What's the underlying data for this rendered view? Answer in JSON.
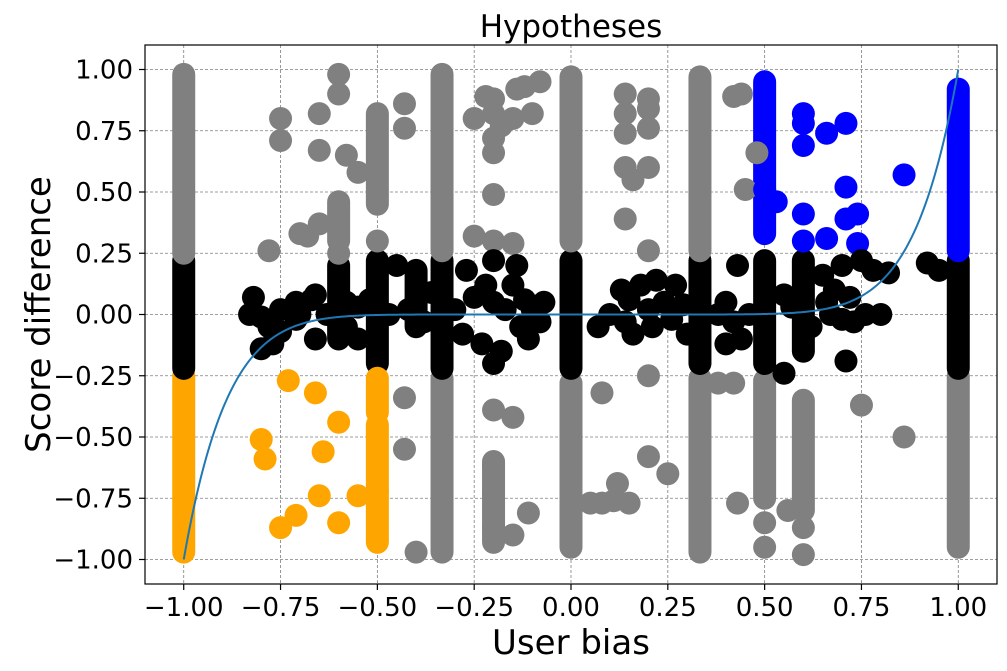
{
  "chart_data": {
    "type": "scatter",
    "title": "Hypotheses",
    "xlabel": "User bias",
    "ylabel": "Score difference",
    "xlim": [
      -1.1,
      1.1
    ],
    "ylim": [
      -1.1,
      1.1
    ],
    "xticks": [
      -1.0,
      -0.75,
      -0.5,
      -0.25,
      0.0,
      0.25,
      0.5,
      0.75,
      1.0
    ],
    "xtick_labels": [
      "−1.00",
      "−0.75",
      "−0.50",
      "−0.25",
      "0.00",
      "0.25",
      "0.50",
      "0.75",
      "1.00"
    ],
    "yticks": [
      1.0,
      0.75,
      0.5,
      0.25,
      0.0,
      -0.25,
      -0.5,
      -0.75,
      -1.0
    ],
    "ytick_labels": [
      "1.00",
      "0.75",
      "0.50",
      "0.25",
      "0.00",
      "−0.25",
      "−0.50",
      "−0.75",
      "−1.00"
    ],
    "grid": true,
    "colors": {
      "gray": "#808080",
      "black": "#000000",
      "blue": "#0000ff",
      "orange": "#ffa500",
      "curve": "#1f77b4"
    },
    "vertical_streaks": [
      {
        "x": -1.0,
        "y_from": -0.97,
        "y_to": -0.25,
        "color": "orange"
      },
      {
        "x": -1.0,
        "y_from": -0.22,
        "y_to": 0.22,
        "color": "black"
      },
      {
        "x": -1.0,
        "y_from": 0.25,
        "y_to": 0.98,
        "color": "gray"
      },
      {
        "x": -0.333,
        "y_from": -0.97,
        "y_to": -0.26,
        "color": "gray"
      },
      {
        "x": -0.333,
        "y_from": -0.22,
        "y_to": 0.22,
        "color": "black"
      },
      {
        "x": -0.333,
        "y_from": 0.26,
        "y_to": 0.98,
        "color": "gray"
      },
      {
        "x": 0.0,
        "y_from": -0.95,
        "y_to": -0.28,
        "color": "gray"
      },
      {
        "x": 0.0,
        "y_from": -0.22,
        "y_to": 0.22,
        "color": "black"
      },
      {
        "x": 0.0,
        "y_from": 0.3,
        "y_to": 0.97,
        "color": "gray"
      },
      {
        "x": 0.333,
        "y_from": -0.97,
        "y_to": -0.26,
        "color": "gray"
      },
      {
        "x": 0.333,
        "y_from": -0.2,
        "y_to": 0.22,
        "color": "black"
      },
      {
        "x": 0.333,
        "y_from": 0.26,
        "y_to": 0.97,
        "color": "gray"
      },
      {
        "x": 0.5,
        "y_from": -0.75,
        "y_to": -0.27,
        "color": "gray"
      },
      {
        "x": 0.5,
        "y_from": -0.2,
        "y_to": 0.22,
        "color": "black"
      },
      {
        "x": 0.5,
        "y_from": 0.33,
        "y_to": 0.95,
        "color": "blue"
      },
      {
        "x": 1.0,
        "y_from": -0.95,
        "y_to": -0.25,
        "color": "gray"
      },
      {
        "x": 1.0,
        "y_from": -0.22,
        "y_to": 0.22,
        "color": "black"
      },
      {
        "x": 1.0,
        "y_from": 0.26,
        "y_to": 0.92,
        "color": "blue"
      },
      {
        "x": -0.5,
        "y_from": 0.45,
        "y_to": 0.82,
        "color": "gray"
      },
      {
        "x": -0.5,
        "y_from": -0.2,
        "y_to": 0.22,
        "color": "black"
      },
      {
        "x": -0.5,
        "y_from": -0.4,
        "y_to": -0.26,
        "color": "orange"
      },
      {
        "x": -0.5,
        "y_from": -0.93,
        "y_to": -0.45,
        "color": "orange"
      },
      {
        "x": -0.6,
        "y_from": 0.3,
        "y_to": 0.46,
        "color": "gray"
      },
      {
        "x": -0.2,
        "y_from": -0.93,
        "y_to": -0.6,
        "color": "gray"
      },
      {
        "x": 0.6,
        "y_from": -0.8,
        "y_to": -0.35,
        "color": "gray"
      },
      {
        "x": 0.6,
        "y_from": -0.15,
        "y_to": 0.22,
        "color": "black"
      },
      {
        "x": -0.6,
        "y_from": -0.1,
        "y_to": 0.2,
        "color": "black"
      },
      {
        "x": -0.4,
        "y_from": -0.05,
        "y_to": 0.18,
        "color": "black"
      }
    ],
    "points": [
      {
        "x": -0.6,
        "y": 0.98,
        "color": "gray"
      },
      {
        "x": -0.6,
        "y": 0.9,
        "color": "gray"
      },
      {
        "x": -0.65,
        "y": 0.82,
        "color": "gray"
      },
      {
        "x": -0.65,
        "y": 0.67,
        "color": "gray"
      },
      {
        "x": -0.75,
        "y": 0.8,
        "color": "gray"
      },
      {
        "x": -0.75,
        "y": 0.71,
        "color": "gray"
      },
      {
        "x": -0.58,
        "y": 0.65,
        "color": "gray"
      },
      {
        "x": -0.55,
        "y": 0.58,
        "color": "gray"
      },
      {
        "x": -0.65,
        "y": 0.37,
        "color": "gray"
      },
      {
        "x": -0.7,
        "y": 0.33,
        "color": "gray"
      },
      {
        "x": -0.68,
        "y": 0.32,
        "color": "gray"
      },
      {
        "x": -0.78,
        "y": 0.26,
        "color": "gray"
      },
      {
        "x": -0.6,
        "y": 0.25,
        "color": "gray"
      },
      {
        "x": -0.43,
        "y": 0.86,
        "color": "gray"
      },
      {
        "x": -0.43,
        "y": 0.76,
        "color": "gray"
      },
      {
        "x": -0.5,
        "y": 0.3,
        "color": "gray"
      },
      {
        "x": -0.25,
        "y": 0.8,
        "color": "gray"
      },
      {
        "x": -0.25,
        "y": 0.32,
        "color": "gray"
      },
      {
        "x": -0.2,
        "y": 0.88,
        "color": "gray"
      },
      {
        "x": -0.2,
        "y": 0.82,
        "color": "gray"
      },
      {
        "x": -0.2,
        "y": 0.72,
        "color": "gray"
      },
      {
        "x": -0.2,
        "y": 0.66,
        "color": "gray"
      },
      {
        "x": -0.2,
        "y": 0.49,
        "color": "gray"
      },
      {
        "x": -0.2,
        "y": 0.3,
        "color": "gray"
      },
      {
        "x": -0.18,
        "y": 0.77,
        "color": "gray"
      },
      {
        "x": -0.15,
        "y": 0.8,
        "color": "gray"
      },
      {
        "x": -0.14,
        "y": 0.92,
        "color": "gray"
      },
      {
        "x": -0.12,
        "y": 0.93,
        "color": "gray"
      },
      {
        "x": -0.1,
        "y": 0.82,
        "color": "gray"
      },
      {
        "x": -0.08,
        "y": 0.95,
        "color": "gray"
      },
      {
        "x": -0.15,
        "y": 0.29,
        "color": "gray"
      },
      {
        "x": -0.22,
        "y": 0.89,
        "color": "gray"
      },
      {
        "x": 0.14,
        "y": 0.9,
        "color": "gray"
      },
      {
        "x": 0.14,
        "y": 0.82,
        "color": "gray"
      },
      {
        "x": 0.14,
        "y": 0.74,
        "color": "gray"
      },
      {
        "x": 0.14,
        "y": 0.6,
        "color": "gray"
      },
      {
        "x": 0.14,
        "y": 0.39,
        "color": "gray"
      },
      {
        "x": 0.2,
        "y": 0.88,
        "color": "gray"
      },
      {
        "x": 0.2,
        "y": 0.76,
        "color": "gray"
      },
      {
        "x": 0.2,
        "y": 0.6,
        "color": "gray"
      },
      {
        "x": 0.2,
        "y": 0.26,
        "color": "gray"
      },
      {
        "x": 0.2,
        "y": 0.84,
        "color": "gray"
      },
      {
        "x": 0.16,
        "y": 0.55,
        "color": "gray"
      },
      {
        "x": 0.42,
        "y": 0.89,
        "color": "gray"
      },
      {
        "x": 0.44,
        "y": 0.9,
        "color": "gray"
      },
      {
        "x": 0.45,
        "y": 0.51,
        "color": "gray"
      },
      {
        "x": 0.48,
        "y": 0.66,
        "color": "gray"
      },
      {
        "x": -0.43,
        "y": -0.34,
        "color": "gray"
      },
      {
        "x": -0.43,
        "y": -0.55,
        "color": "gray"
      },
      {
        "x": -0.4,
        "y": -0.97,
        "color": "gray"
      },
      {
        "x": -0.2,
        "y": -0.39,
        "color": "gray"
      },
      {
        "x": -0.2,
        "y": -0.62,
        "color": "gray"
      },
      {
        "x": -0.2,
        "y": -0.73,
        "color": "gray"
      },
      {
        "x": -0.2,
        "y": -0.87,
        "color": "gray"
      },
      {
        "x": -0.15,
        "y": -0.42,
        "color": "gray"
      },
      {
        "x": -0.15,
        "y": -0.9,
        "color": "gray"
      },
      {
        "x": -0.11,
        "y": -0.81,
        "color": "gray"
      },
      {
        "x": 0.05,
        "y": -0.77,
        "color": "gray"
      },
      {
        "x": 0.08,
        "y": -0.77,
        "color": "gray"
      },
      {
        "x": 0.08,
        "y": -0.32,
        "color": "gray"
      },
      {
        "x": 0.11,
        "y": -0.76,
        "color": "gray"
      },
      {
        "x": 0.12,
        "y": -0.69,
        "color": "gray"
      },
      {
        "x": 0.15,
        "y": -0.77,
        "color": "gray"
      },
      {
        "x": 0.2,
        "y": -0.25,
        "color": "gray"
      },
      {
        "x": 0.2,
        "y": -0.58,
        "color": "gray"
      },
      {
        "x": 0.25,
        "y": -0.65,
        "color": "gray"
      },
      {
        "x": 0.38,
        "y": -0.28,
        "color": "gray"
      },
      {
        "x": 0.42,
        "y": -0.28,
        "color": "gray"
      },
      {
        "x": 0.43,
        "y": -0.77,
        "color": "gray"
      },
      {
        "x": 0.5,
        "y": -0.85,
        "color": "gray"
      },
      {
        "x": 0.5,
        "y": -0.95,
        "color": "gray"
      },
      {
        "x": 0.56,
        "y": -0.8,
        "color": "gray"
      },
      {
        "x": 0.6,
        "y": -0.87,
        "color": "gray"
      },
      {
        "x": 0.6,
        "y": -0.98,
        "color": "gray"
      },
      {
        "x": 0.75,
        "y": -0.37,
        "color": "gray"
      },
      {
        "x": 0.86,
        "y": -0.5,
        "color": "gray"
      },
      {
        "x": 0.5,
        "y": 0.51,
        "color": "blue"
      },
      {
        "x": 0.53,
        "y": 0.46,
        "color": "blue"
      },
      {
        "x": 0.6,
        "y": 0.82,
        "color": "blue"
      },
      {
        "x": 0.6,
        "y": 0.78,
        "color": "blue"
      },
      {
        "x": 0.6,
        "y": 0.69,
        "color": "blue"
      },
      {
        "x": 0.6,
        "y": 0.41,
        "color": "blue"
      },
      {
        "x": 0.6,
        "y": 0.3,
        "color": "blue"
      },
      {
        "x": 0.66,
        "y": 0.31,
        "color": "blue"
      },
      {
        "x": 0.66,
        "y": 0.74,
        "color": "blue"
      },
      {
        "x": 0.71,
        "y": 0.78,
        "color": "blue"
      },
      {
        "x": 0.71,
        "y": 0.52,
        "color": "blue"
      },
      {
        "x": 0.71,
        "y": 0.39,
        "color": "blue"
      },
      {
        "x": 0.74,
        "y": 0.41,
        "color": "blue"
      },
      {
        "x": 0.74,
        "y": 0.29,
        "color": "blue"
      },
      {
        "x": 0.86,
        "y": 0.57,
        "color": "blue"
      },
      {
        "x": -0.8,
        "y": -0.51,
        "color": "orange"
      },
      {
        "x": -0.79,
        "y": -0.59,
        "color": "orange"
      },
      {
        "x": -0.75,
        "y": -0.87,
        "color": "orange"
      },
      {
        "x": -0.71,
        "y": -0.82,
        "color": "orange"
      },
      {
        "x": -0.73,
        "y": -0.27,
        "color": "orange"
      },
      {
        "x": -0.66,
        "y": -0.32,
        "color": "orange"
      },
      {
        "x": -0.65,
        "y": -0.74,
        "color": "orange"
      },
      {
        "x": -0.64,
        "y": -0.56,
        "color": "orange"
      },
      {
        "x": -0.6,
        "y": -0.44,
        "color": "orange"
      },
      {
        "x": -0.6,
        "y": -0.85,
        "color": "orange"
      },
      {
        "x": -0.55,
        "y": -0.74,
        "color": "orange"
      },
      {
        "x": -0.5,
        "y": -0.72,
        "color": "orange"
      },
      {
        "x": -0.82,
        "y": 0.07,
        "color": "black"
      },
      {
        "x": -0.83,
        "y": 0.0,
        "color": "black"
      },
      {
        "x": -0.8,
        "y": -0.01,
        "color": "black"
      },
      {
        "x": -0.8,
        "y": -0.14,
        "color": "black"
      },
      {
        "x": -0.78,
        "y": -0.05,
        "color": "black"
      },
      {
        "x": -0.77,
        "y": -0.12,
        "color": "black"
      },
      {
        "x": -0.75,
        "y": 0.02,
        "color": "black"
      },
      {
        "x": -0.75,
        "y": -0.07,
        "color": "black"
      },
      {
        "x": -0.71,
        "y": 0.05,
        "color": "black"
      },
      {
        "x": -0.71,
        "y": -0.02,
        "color": "black"
      },
      {
        "x": -0.7,
        "y": 0.0,
        "color": "black"
      },
      {
        "x": -0.67,
        "y": 0.06,
        "color": "black"
      },
      {
        "x": -0.66,
        "y": 0.08,
        "color": "black"
      },
      {
        "x": -0.66,
        "y": -0.1,
        "color": "black"
      },
      {
        "x": -0.63,
        "y": 0.0,
        "color": "black"
      },
      {
        "x": -0.58,
        "y": 0.05,
        "color": "black"
      },
      {
        "x": -0.58,
        "y": -0.05,
        "color": "black"
      },
      {
        "x": -0.55,
        "y": 0.03,
        "color": "black"
      },
      {
        "x": -0.55,
        "y": -0.1,
        "color": "black"
      },
      {
        "x": -0.52,
        "y": 0.06,
        "color": "black"
      },
      {
        "x": -0.47,
        "y": 0.0,
        "color": "black"
      },
      {
        "x": -0.45,
        "y": 0.2,
        "color": "black"
      },
      {
        "x": -0.42,
        "y": 0.02,
        "color": "black"
      },
      {
        "x": -0.4,
        "y": 0.06,
        "color": "black"
      },
      {
        "x": -0.38,
        "y": -0.03,
        "color": "black"
      },
      {
        "x": -0.36,
        "y": 0.09,
        "color": "black"
      },
      {
        "x": -0.3,
        "y": 0.02,
        "color": "black"
      },
      {
        "x": -0.28,
        "y": -0.08,
        "color": "black"
      },
      {
        "x": -0.27,
        "y": 0.18,
        "color": "black"
      },
      {
        "x": -0.25,
        "y": 0.07,
        "color": "black"
      },
      {
        "x": -0.23,
        "y": -0.12,
        "color": "black"
      },
      {
        "x": -0.22,
        "y": 0.12,
        "color": "black"
      },
      {
        "x": -0.2,
        "y": 0.22,
        "color": "black"
      },
      {
        "x": -0.2,
        "y": 0.05,
        "color": "black"
      },
      {
        "x": -0.2,
        "y": -0.2,
        "color": "black"
      },
      {
        "x": -0.18,
        "y": -0.15,
        "color": "black"
      },
      {
        "x": -0.17,
        "y": 0.02,
        "color": "black"
      },
      {
        "x": -0.15,
        "y": 0.12,
        "color": "black"
      },
      {
        "x": -0.14,
        "y": 0.2,
        "color": "black"
      },
      {
        "x": -0.13,
        "y": -0.05,
        "color": "black"
      },
      {
        "x": -0.12,
        "y": 0.06,
        "color": "black"
      },
      {
        "x": -0.11,
        "y": -0.1,
        "color": "black"
      },
      {
        "x": -0.1,
        "y": 0.02,
        "color": "black"
      },
      {
        "x": -0.08,
        "y": -0.03,
        "color": "black"
      },
      {
        "x": -0.07,
        "y": 0.05,
        "color": "black"
      },
      {
        "x": 0.07,
        "y": -0.05,
        "color": "black"
      },
      {
        "x": 0.1,
        "y": 0.0,
        "color": "black"
      },
      {
        "x": 0.13,
        "y": 0.1,
        "color": "black"
      },
      {
        "x": 0.14,
        "y": -0.03,
        "color": "black"
      },
      {
        "x": 0.15,
        "y": 0.06,
        "color": "black"
      },
      {
        "x": 0.16,
        "y": -0.08,
        "color": "black"
      },
      {
        "x": 0.18,
        "y": 0.12,
        "color": "black"
      },
      {
        "x": 0.2,
        "y": 0.02,
        "color": "black"
      },
      {
        "x": 0.21,
        "y": -0.05,
        "color": "black"
      },
      {
        "x": 0.22,
        "y": 0.14,
        "color": "black"
      },
      {
        "x": 0.24,
        "y": 0.05,
        "color": "black"
      },
      {
        "x": 0.26,
        "y": -0.02,
        "color": "black"
      },
      {
        "x": 0.27,
        "y": 0.12,
        "color": "black"
      },
      {
        "x": 0.29,
        "y": 0.04,
        "color": "black"
      },
      {
        "x": 0.3,
        "y": -0.08,
        "color": "black"
      },
      {
        "x": 0.38,
        "y": 0.0,
        "color": "black"
      },
      {
        "x": 0.4,
        "y": -0.12,
        "color": "black"
      },
      {
        "x": 0.4,
        "y": 0.05,
        "color": "black"
      },
      {
        "x": 0.42,
        "y": -0.03,
        "color": "black"
      },
      {
        "x": 0.43,
        "y": 0.2,
        "color": "black"
      },
      {
        "x": 0.44,
        "y": -0.1,
        "color": "black"
      },
      {
        "x": 0.46,
        "y": 0.0,
        "color": "black"
      },
      {
        "x": 0.55,
        "y": 0.08,
        "color": "black"
      },
      {
        "x": 0.55,
        "y": -0.24,
        "color": "black"
      },
      {
        "x": 0.57,
        "y": 0.03,
        "color": "black"
      },
      {
        "x": 0.62,
        "y": -0.05,
        "color": "black"
      },
      {
        "x": 0.65,
        "y": 0.16,
        "color": "black"
      },
      {
        "x": 0.66,
        "y": 0.05,
        "color": "black"
      },
      {
        "x": 0.67,
        "y": 0.0,
        "color": "black"
      },
      {
        "x": 0.68,
        "y": 0.1,
        "color": "black"
      },
      {
        "x": 0.7,
        "y": 0.2,
        "color": "black"
      },
      {
        "x": 0.7,
        "y": -0.02,
        "color": "black"
      },
      {
        "x": 0.71,
        "y": -0.19,
        "color": "black"
      },
      {
        "x": 0.72,
        "y": 0.07,
        "color": "black"
      },
      {
        "x": 0.73,
        "y": -0.03,
        "color": "black"
      },
      {
        "x": 0.75,
        "y": 0.22,
        "color": "black"
      },
      {
        "x": 0.76,
        "y": 0.0,
        "color": "black"
      },
      {
        "x": 0.78,
        "y": 0.18,
        "color": "black"
      },
      {
        "x": 0.8,
        "y": 0.0,
        "color": "black"
      },
      {
        "x": 0.82,
        "y": 0.17,
        "color": "black"
      },
      {
        "x": 0.92,
        "y": 0.21,
        "color": "black"
      },
      {
        "x": 0.95,
        "y": 0.18,
        "color": "black"
      }
    ],
    "curve": {
      "formula": "y = x^9",
      "color": "curve"
    }
  }
}
